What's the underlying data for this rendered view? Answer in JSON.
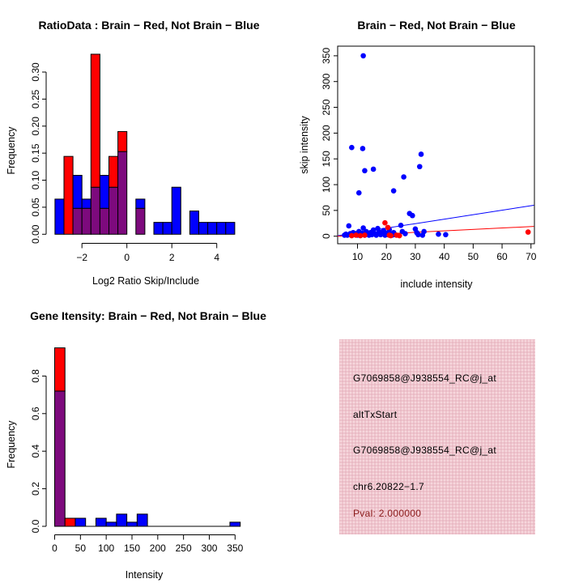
{
  "colors": {
    "red": "#ff0000",
    "blue": "#0000ff",
    "overlap_purple": "#7d0a7d",
    "axis_black": "#000000",
    "info_box_bg": "#efc5cd",
    "pval_red": "#8b1a1a",
    "background": "#ffffff"
  },
  "chart_data": [
    {
      "type": "bar",
      "subtype": "overlaid-histogram",
      "title": "RatioData : Brain − Red, Not Brain − Blue",
      "xlabel": "Log2 Ratio Skip/Include",
      "ylabel": "Frequency",
      "legend": {
        "red_series": "Brain",
        "blue_series": "Not Brain"
      },
      "xlim": [
        -3.2,
        4.8
      ],
      "ylim": [
        0,
        0.333
      ],
      "bin_width": 0.4,
      "grid": false,
      "x_ticks": [
        {
          "v": -2,
          "label": "−2"
        },
        {
          "v": 0,
          "label": "0"
        },
        {
          "v": 2,
          "label": "2"
        },
        {
          "v": 4,
          "label": "4"
        }
      ],
      "y_ticks": [
        {
          "v": 0.0,
          "label": "0.00"
        },
        {
          "v": 0.05,
          "label": "0.05"
        },
        {
          "v": 0.1,
          "label": "0.10"
        },
        {
          "v": 0.15,
          "label": "0.15"
        },
        {
          "v": 0.2,
          "label": "0.20"
        },
        {
          "v": 0.25,
          "label": "0.25"
        },
        {
          "v": 0.3,
          "label": "0.30"
        }
      ],
      "bins": [
        {
          "x0": -3.2,
          "red": 0,
          "blue": 0.065,
          "overlap": 0
        },
        {
          "x0": -2.8,
          "red": 0.144,
          "blue": 0,
          "overlap": 0
        },
        {
          "x0": -2.4,
          "red": 0.048,
          "blue": 0.109,
          "overlap": 0.048
        },
        {
          "x0": -2.0,
          "red": 0.048,
          "blue": 0.065,
          "overlap": 0.048
        },
        {
          "x0": -1.6,
          "red": 0.333,
          "blue": 0.087,
          "overlap": 0.087
        },
        {
          "x0": -1.2,
          "red": 0.048,
          "blue": 0.109,
          "overlap": 0.048
        },
        {
          "x0": -0.8,
          "red": 0.144,
          "blue": 0.087,
          "overlap": 0.087
        },
        {
          "x0": -0.4,
          "red": 0.19,
          "blue": 0.153,
          "overlap": 0.153
        },
        {
          "x0": 0.4,
          "red": 0.048,
          "blue": 0.065,
          "overlap": 0.048
        },
        {
          "x0": 1.2,
          "red": 0,
          "blue": 0.022,
          "overlap": 0
        },
        {
          "x0": 1.6,
          "red": 0,
          "blue": 0.022,
          "overlap": 0
        },
        {
          "x0": 2.0,
          "red": 0,
          "blue": 0.087,
          "overlap": 0
        },
        {
          "x0": 2.8,
          "red": 0,
          "blue": 0.043,
          "overlap": 0
        },
        {
          "x0": 3.2,
          "red": 0,
          "blue": 0.022,
          "overlap": 0
        },
        {
          "x0": 3.6,
          "red": 0,
          "blue": 0.022,
          "overlap": 0
        },
        {
          "x0": 4.0,
          "red": 0,
          "blue": 0.022,
          "overlap": 0
        },
        {
          "x0": 4.4,
          "red": 0,
          "blue": 0.022,
          "overlap": 0
        }
      ],
      "baseline_across_empty_bins": false
    },
    {
      "type": "scatter",
      "title": "Brain − Red, Not Brain − Blue",
      "xlabel": "include intensity",
      "ylabel": "skip intensity",
      "legend": {
        "red_series": "Brain",
        "blue_series": "Not Brain"
      },
      "xlim": [
        3,
        71
      ],
      "ylim": [
        -15,
        367
      ],
      "grid": false,
      "x_ticks": [
        {
          "v": 10,
          "label": "10"
        },
        {
          "v": 20,
          "label": "20"
        },
        {
          "v": 30,
          "label": "30"
        },
        {
          "v": 40,
          "label": "40"
        },
        {
          "v": 50,
          "label": "50"
        },
        {
          "v": 60,
          "label": "60"
        },
        {
          "v": 70,
          "label": "70"
        }
      ],
      "y_ticks": [
        {
          "v": 0,
          "label": "0"
        },
        {
          "v": 50,
          "label": "50"
        },
        {
          "v": 100,
          "label": "100"
        },
        {
          "v": 150,
          "label": "150"
        },
        {
          "v": 200,
          "label": "200"
        },
        {
          "v": 250,
          "label": "250"
        },
        {
          "v": 300,
          "label": "300"
        },
        {
          "v": 350,
          "label": "350"
        }
      ],
      "blue_points": [
        [
          12,
          350
        ],
        [
          8,
          172
        ],
        [
          11.8,
          170
        ],
        [
          12.5,
          127
        ],
        [
          15.5,
          130
        ],
        [
          10.5,
          84
        ],
        [
          26,
          115
        ],
        [
          22.5,
          88
        ],
        [
          32,
          159
        ],
        [
          31.5,
          135
        ],
        [
          28,
          44
        ],
        [
          29,
          40
        ],
        [
          5.5,
          2
        ],
        [
          6,
          4
        ],
        [
          6.5,
          2
        ],
        [
          7,
          20
        ],
        [
          7.5,
          5
        ],
        [
          8,
          2
        ],
        [
          8.5,
          7
        ],
        [
          9,
          3
        ],
        [
          9.5,
          5
        ],
        [
          10,
          2
        ],
        [
          10.5,
          9
        ],
        [
          11,
          3
        ],
        [
          11.5,
          6
        ],
        [
          12,
          16
        ],
        [
          12.5,
          2
        ],
        [
          13,
          9
        ],
        [
          13.5,
          4
        ],
        [
          14,
          2
        ],
        [
          14.5,
          7
        ],
        [
          15,
          3
        ],
        [
          15.5,
          12
        ],
        [
          16,
          5
        ],
        [
          16.5,
          2
        ],
        [
          17,
          15
        ],
        [
          17.5,
          8
        ],
        [
          18,
          3
        ],
        [
          18.5,
          5
        ],
        [
          19,
          11
        ],
        [
          19.5,
          2
        ],
        [
          20,
          6
        ],
        [
          20.5,
          3
        ],
        [
          21,
          13
        ],
        [
          21.5,
          4
        ],
        [
          22,
          2
        ],
        [
          22.5,
          7
        ],
        [
          23,
          3
        ],
        [
          25,
          21
        ],
        [
          25.5,
          9
        ],
        [
          26.5,
          5
        ],
        [
          30,
          14
        ],
        [
          30.5,
          7
        ],
        [
          31,
          3
        ],
        [
          32.5,
          2
        ],
        [
          33,
          9
        ],
        [
          38,
          4
        ],
        [
          40.5,
          3
        ]
      ],
      "red_points": [
        [
          8,
          1
        ],
        [
          9.5,
          2
        ],
        [
          11,
          1
        ],
        [
          12.5,
          2
        ],
        [
          19.5,
          26
        ],
        [
          20.5,
          17
        ],
        [
          21,
          2
        ],
        [
          21.5,
          1
        ],
        [
          23.5,
          2
        ],
        [
          24.5,
          1
        ],
        [
          69,
          8
        ]
      ],
      "fit_lines": [
        {
          "series": "blue",
          "x1": 3.1,
          "y1": 1,
          "x2": 71,
          "y2": 60
        },
        {
          "series": "red",
          "x1": 3.1,
          "y1": 0,
          "x2": 71,
          "y2": 19
        }
      ]
    },
    {
      "type": "bar",
      "subtype": "overlaid-histogram",
      "title": "Gene Itensity: Brain − Red, Not Brain − Blue",
      "xlabel": "Intensity",
      "ylabel": "Frequency",
      "legend": {
        "red_series": "Brain",
        "blue_series": "Not Brain"
      },
      "xlim": [
        0,
        360
      ],
      "ylim": [
        0,
        0.95
      ],
      "bin_width": 20,
      "grid": false,
      "x_ticks": [
        {
          "v": 0,
          "label": "0"
        },
        {
          "v": 50,
          "label": "50"
        },
        {
          "v": 100,
          "label": "100"
        },
        {
          "v": 150,
          "label": "150"
        },
        {
          "v": 200,
          "label": "200"
        },
        {
          "v": 250,
          "label": "250"
        },
        {
          "v": 300,
          "label": "300"
        },
        {
          "v": 350,
          "label": "350"
        }
      ],
      "y_ticks": [
        {
          "v": 0.0,
          "label": "0.0"
        },
        {
          "v": 0.2,
          "label": "0.2"
        },
        {
          "v": 0.4,
          "label": "0.4"
        },
        {
          "v": 0.6,
          "label": "0.6"
        },
        {
          "v": 0.8,
          "label": "0.8"
        }
      ],
      "bins": [
        {
          "x0": 0,
          "red": 0.95,
          "blue": 0.72,
          "overlap": 0.72
        },
        {
          "x0": 20,
          "red": 0.043,
          "blue": 0,
          "overlap": 0
        },
        {
          "x0": 40,
          "red": 0,
          "blue": 0.043,
          "overlap": 0
        },
        {
          "x0": 80,
          "red": 0,
          "blue": 0.043,
          "overlap": 0
        },
        {
          "x0": 100,
          "red": 0,
          "blue": 0.022,
          "overlap": 0
        },
        {
          "x0": 120,
          "red": 0,
          "blue": 0.065,
          "overlap": 0
        },
        {
          "x0": 140,
          "red": 0,
          "blue": 0.022,
          "overlap": 0
        },
        {
          "x0": 160,
          "red": 0,
          "blue": 0.065,
          "overlap": 0
        },
        {
          "x0": 340,
          "red": 0,
          "blue": 0.022,
          "overlap": 0
        }
      ],
      "baseline_across_empty_bins": true
    }
  ],
  "info_box": {
    "lines": [
      {
        "text": "G7069858@J938554_RC@j_at"
      },
      {
        "text": "altTxStart"
      },
      {
        "text": "G7069858@J938554_RC@j_at"
      },
      {
        "text": "chr6.20822−1.7"
      },
      {
        "text": "Pval: 2.000000"
      }
    ]
  }
}
